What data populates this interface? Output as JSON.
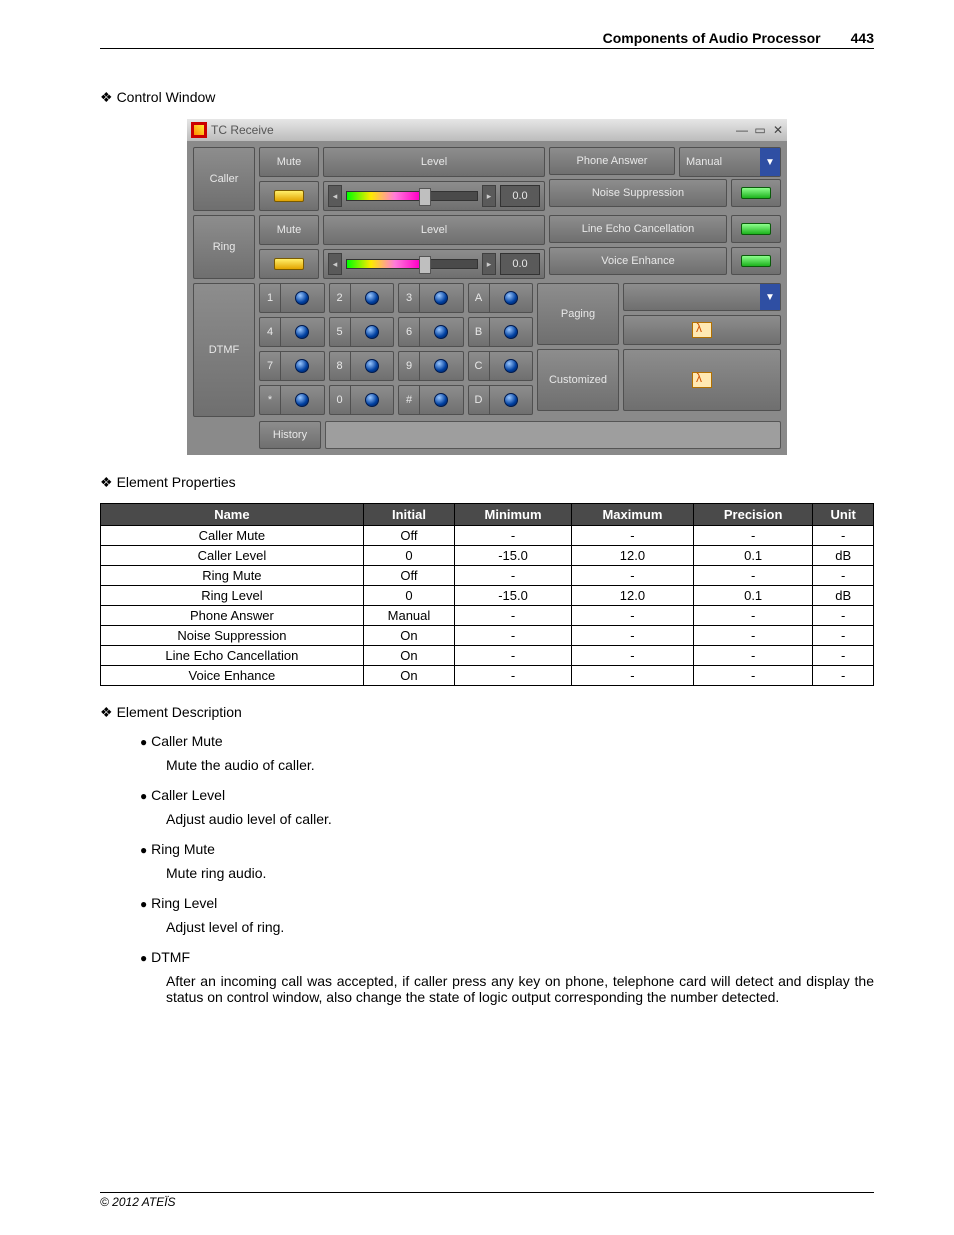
{
  "header": {
    "title": "Components of Audio Processor",
    "page": "443"
  },
  "sections": {
    "control": "Control Window",
    "props": "Element Properties",
    "desc": "Element Description"
  },
  "window": {
    "title": "TC Receive",
    "caller": {
      "label": "Caller",
      "mute": "Mute",
      "level_label": "Level",
      "value": "0.0"
    },
    "ring": {
      "label": "Ring",
      "mute": "Mute",
      "level_label": "Level",
      "value": "0.0"
    },
    "phone_answer": {
      "label": "Phone Answer",
      "value": "Manual"
    },
    "noise": "Noise Suppression",
    "echo": "Line Echo Cancellation",
    "voice": "Voice Enhance",
    "dtmf": {
      "label": "DTMF",
      "keys": [
        "1",
        "2",
        "3",
        "A",
        "4",
        "5",
        "6",
        "B",
        "7",
        "8",
        "9",
        "C",
        "*",
        "0",
        "#",
        "D"
      ]
    },
    "paging": "Paging",
    "customized": "Customized",
    "history": "History"
  },
  "props": {
    "headers": [
      "Name",
      "Initial",
      "Minimum",
      "Maximum",
      "Precision",
      "Unit"
    ],
    "rows": [
      [
        "Caller Mute",
        "Off",
        "-",
        "-",
        "-",
        "-"
      ],
      [
        "Caller Level",
        "0",
        "-15.0",
        "12.0",
        "0.1",
        "dB"
      ],
      [
        "Ring Mute",
        "Off",
        "-",
        "-",
        "-",
        "-"
      ],
      [
        "Ring Level",
        "0",
        "-15.0",
        "12.0",
        "0.1",
        "dB"
      ],
      [
        "Phone Answer",
        "Manual",
        "-",
        "-",
        "-",
        "-"
      ],
      [
        "Noise Suppression",
        "On",
        "-",
        "-",
        "-",
        "-"
      ],
      [
        "Line Echo Cancellation",
        "On",
        "-",
        "-",
        "-",
        "-"
      ],
      [
        "Voice Enhance",
        "On",
        "-",
        "-",
        "-",
        "-"
      ]
    ]
  },
  "desc": [
    {
      "t": "Caller Mute",
      "d": "Mute the audio of caller."
    },
    {
      "t": "Caller Level",
      "d": "Adjust audio level of caller."
    },
    {
      "t": "Ring Mute",
      "d": "Mute ring audio."
    },
    {
      "t": "Ring Level",
      "d": "Adjust level of ring."
    },
    {
      "t": "DTMF",
      "d": "After an incoming call was accepted, if caller press any key on phone, telephone card will detect and display the status on control window, also change the state of logic output corresponding the number detected."
    }
  ],
  "footer": "© 2012 ATEÏS"
}
